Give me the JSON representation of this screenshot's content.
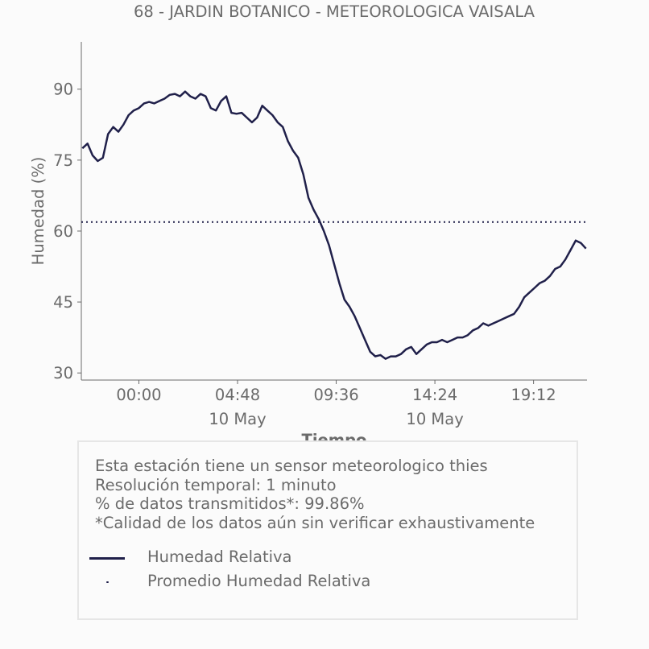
{
  "chart_data": {
    "type": "line",
    "title": "68 - JARDIN BOTANICO - METEOROLOGICA VAISALA",
    "xlabel": "Tiempo",
    "ylabel": "Humedad (%)",
    "ylim": [
      28.5,
      100
    ],
    "yticks": [
      30,
      45,
      60,
      75,
      90
    ],
    "xlim": [
      "2023-05-09 21:12",
      "2023-05-10 21:48"
    ],
    "xticks": [
      {
        "time": "2023-05-10 00:00",
        "label": "00:00",
        "sublabel": ""
      },
      {
        "time": "2023-05-10 04:48",
        "label": "04:48",
        "sublabel": "10 May"
      },
      {
        "time": "2023-05-10 09:36",
        "label": "09:36",
        "sublabel": ""
      },
      {
        "time": "2023-05-10 14:24",
        "label": "14:24",
        "sublabel": "10 May"
      },
      {
        "time": "2023-05-10 19:12",
        "label": "19:12",
        "sublabel": ""
      }
    ],
    "grid": false,
    "mean_line": {
      "name": "Promedio Humedad Relativa",
      "value": 61.9,
      "style": "dotted"
    },
    "series": [
      {
        "name": "Humedad Relativa",
        "color": "#20204a",
        "x": [
          "2023-05-09 21:15",
          "2023-05-09 21:30",
          "2023-05-09 21:45",
          "2023-05-09 22:00",
          "2023-05-09 22:15",
          "2023-05-09 22:30",
          "2023-05-09 22:45",
          "2023-05-09 23:00",
          "2023-05-09 23:15",
          "2023-05-09 23:30",
          "2023-05-09 23:45",
          "2023-05-10 00:00",
          "2023-05-10 00:15",
          "2023-05-10 00:30",
          "2023-05-10 00:45",
          "2023-05-10 01:00",
          "2023-05-10 01:15",
          "2023-05-10 01:30",
          "2023-05-10 01:45",
          "2023-05-10 02:00",
          "2023-05-10 02:15",
          "2023-05-10 02:30",
          "2023-05-10 02:45",
          "2023-05-10 03:00",
          "2023-05-10 03:15",
          "2023-05-10 03:30",
          "2023-05-10 03:45",
          "2023-05-10 04:00",
          "2023-05-10 04:15",
          "2023-05-10 04:30",
          "2023-05-10 04:45",
          "2023-05-10 05:00",
          "2023-05-10 05:15",
          "2023-05-10 05:30",
          "2023-05-10 05:45",
          "2023-05-10 06:00",
          "2023-05-10 06:15",
          "2023-05-10 06:30",
          "2023-05-10 06:45",
          "2023-05-10 07:00",
          "2023-05-10 07:15",
          "2023-05-10 07:30",
          "2023-05-10 07:45",
          "2023-05-10 08:00",
          "2023-05-10 08:15",
          "2023-05-10 08:30",
          "2023-05-10 08:45",
          "2023-05-10 09:00",
          "2023-05-10 09:15",
          "2023-05-10 09:30",
          "2023-05-10 09:45",
          "2023-05-10 10:00",
          "2023-05-10 10:15",
          "2023-05-10 10:30",
          "2023-05-10 10:45",
          "2023-05-10 11:00",
          "2023-05-10 11:15",
          "2023-05-10 11:30",
          "2023-05-10 11:45",
          "2023-05-10 12:00",
          "2023-05-10 12:15",
          "2023-05-10 12:30",
          "2023-05-10 12:45",
          "2023-05-10 13:00",
          "2023-05-10 13:15",
          "2023-05-10 13:30",
          "2023-05-10 13:45",
          "2023-05-10 14:00",
          "2023-05-10 14:15",
          "2023-05-10 14:30",
          "2023-05-10 14:45",
          "2023-05-10 15:00",
          "2023-05-10 15:15",
          "2023-05-10 15:30",
          "2023-05-10 15:45",
          "2023-05-10 16:00",
          "2023-05-10 16:15",
          "2023-05-10 16:30",
          "2023-05-10 16:45",
          "2023-05-10 17:00",
          "2023-05-10 17:15",
          "2023-05-10 17:30",
          "2023-05-10 17:45",
          "2023-05-10 18:00",
          "2023-05-10 18:15",
          "2023-05-10 18:30",
          "2023-05-10 18:45",
          "2023-05-10 19:00",
          "2023-05-10 19:15",
          "2023-05-10 19:30",
          "2023-05-10 19:45",
          "2023-05-10 20:00",
          "2023-05-10 20:15",
          "2023-05-10 20:30",
          "2023-05-10 20:45",
          "2023-05-10 21:00",
          "2023-05-10 21:15",
          "2023-05-10 21:30",
          "2023-05-10 21:45"
        ],
        "values": [
          77.5,
          78.5,
          76.0,
          74.8,
          75.5,
          80.5,
          82.0,
          81.0,
          82.5,
          84.5,
          85.5,
          86.0,
          87.0,
          87.3,
          87.0,
          87.5,
          88.0,
          88.8,
          89.0,
          88.5,
          89.5,
          88.5,
          88.0,
          89.0,
          88.5,
          86.0,
          85.5,
          87.5,
          88.5,
          85.0,
          84.8,
          85.0,
          84.0,
          83.0,
          84.0,
          86.5,
          85.5,
          84.5,
          83.0,
          82.0,
          79.0,
          77.0,
          75.5,
          72.0,
          67.0,
          64.5,
          62.5,
          60.0,
          57.0,
          53.0,
          49.0,
          45.5,
          44.0,
          42.0,
          39.5,
          37.0,
          34.5,
          33.5,
          33.8,
          33.0,
          33.5,
          33.5,
          34.0,
          35.0,
          35.5,
          34.0,
          35.0,
          36.0,
          36.5,
          36.5,
          37.0,
          36.5,
          37.0,
          37.5,
          37.5,
          38.0,
          39.0,
          39.5,
          40.5,
          40.0,
          40.5,
          41.0,
          41.5,
          42.0,
          42.5,
          44.0,
          46.0,
          47.0,
          48.0,
          49.0,
          49.5,
          50.5,
          52.0,
          52.5,
          54.0,
          56.0,
          58.0,
          57.5,
          56.3
        ]
      }
    ]
  },
  "info": {
    "lines": [
      "Esta estación tiene un sensor meteorologico thies",
      "Resolución temporal: 1 minuto",
      "% de datos transmitidos*: 99.86%",
      "*Calidad de los datos aún sin verificar exhaustivamente"
    ]
  },
  "legend": {
    "items": [
      {
        "label": "Humedad Relativa",
        "marker": "line"
      },
      {
        "label": "Promedio Humedad Relativa",
        "marker": "dot"
      }
    ]
  }
}
